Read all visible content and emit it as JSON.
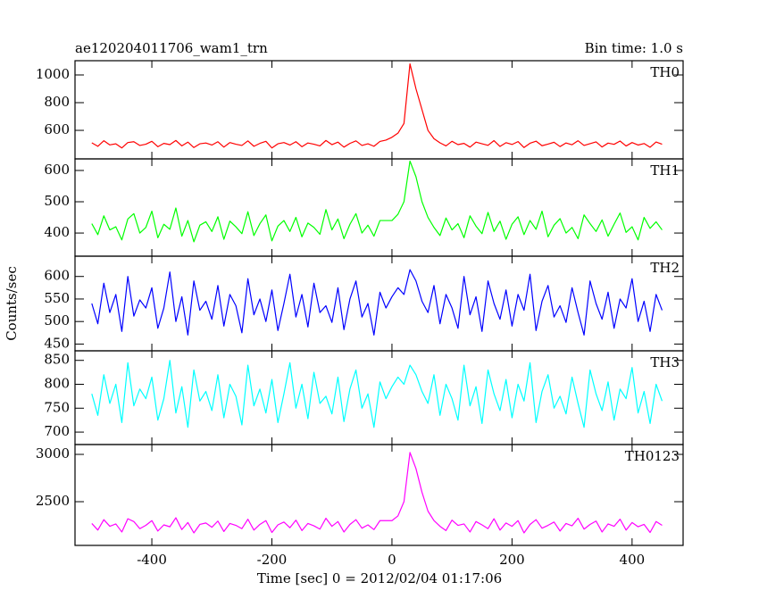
{
  "chart_data": {
    "type": "line",
    "title": "ae120204011706_wam1_trn",
    "subtitle": "Bin time: 1.0 s",
    "y_label": "Counts/sec",
    "x_label": "Time [sec] 0 = 2012/02/04 01:17:06",
    "xlim": [
      -528,
      485
    ],
    "xticks": [
      -400,
      -200,
      0,
      200,
      400
    ],
    "x": [
      -500,
      -490,
      -480,
      -470,
      -460,
      -450,
      -440,
      -430,
      -420,
      -410,
      -400,
      -390,
      -380,
      -370,
      -360,
      -350,
      -340,
      -330,
      -320,
      -310,
      -300,
      -290,
      -280,
      -270,
      -260,
      -250,
      -240,
      -230,
      -220,
      -210,
      -200,
      -190,
      -180,
      -170,
      -160,
      -150,
      -140,
      -130,
      -120,
      -110,
      -100,
      -90,
      -80,
      -70,
      -60,
      -50,
      -40,
      -30,
      -20,
      -10,
      0,
      10,
      20,
      30,
      40,
      50,
      60,
      70,
      80,
      90,
      100,
      110,
      120,
      130,
      140,
      150,
      160,
      170,
      180,
      190,
      200,
      210,
      220,
      230,
      240,
      250,
      260,
      270,
      280,
      290,
      300,
      310,
      320,
      330,
      340,
      350,
      360,
      370,
      380,
      390,
      400,
      410,
      420,
      430,
      440,
      450
    ],
    "series": [
      {
        "name": "TH0",
        "color": "#ff0000",
        "ylim": [
          394,
          1103
        ],
        "yticks": [
          600,
          800,
          1000
        ],
        "values": [
          510,
          485,
          525,
          495,
          503,
          473,
          512,
          518,
          491,
          500,
          521,
          482,
          506,
          497,
          527,
          488,
          515,
          476,
          503,
          509,
          494,
          518,
          479,
          512,
          500,
          491,
          524,
          485,
          506,
          521,
          473,
          503,
          512,
          494,
          518,
          482,
          509,
          500,
          488,
          527,
          497,
          515,
          479,
          506,
          524,
          491,
          503,
          485,
          520,
          530,
          550,
          580,
          650,
          1080,
          900,
          750,
          600,
          540,
          510,
          488,
          521,
          497,
          506,
          479,
          515,
          503,
          492,
          526,
          484,
          511,
          498,
          519,
          476,
          507,
          522,
          489,
          501,
          514,
          483,
          509,
          496,
          525,
          491,
          504,
          517,
          480,
          508,
          499,
          523,
          487,
          512,
          494,
          505,
          478,
          516,
          500
        ]
      },
      {
        "name": "TH1",
        "color": "#00ff00",
        "ylim": [
          326,
          637
        ],
        "yticks": [
          400,
          500,
          600
        ],
        "values": [
          430,
          395,
          455,
          410,
          420,
          378,
          445,
          462,
          400,
          418,
          470,
          385,
          428,
          412,
          480,
          390,
          440,
          372,
          425,
          436,
          405,
          452,
          380,
          438,
          420,
          398,
          468,
          392,
          430,
          458,
          375,
          422,
          440,
          405,
          450,
          388,
          432,
          418,
          396,
          475,
          410,
          445,
          382,
          428,
          462,
          400,
          425,
          390,
          440,
          440,
          440,
          460,
          500,
          630,
          580,
          500,
          450,
          418,
          392,
          448,
          410,
          430,
          385,
          455,
          422,
          398,
          466,
          405,
          438,
          380,
          428,
          452,
          395,
          440,
          412,
          470,
          388,
          425,
          446,
          400,
          418,
          382,
          458,
          430,
          405,
          442,
          390,
          428,
          464,
          402,
          420,
          378,
          450,
          415,
          436,
          410
        ]
      },
      {
        "name": "TH2",
        "color": "#0000ff",
        "ylim": [
          435,
          645
        ],
        "yticks": [
          450,
          500,
          550,
          600
        ],
        "values": [
          540,
          495,
          585,
          520,
          560,
          478,
          600,
          512,
          548,
          530,
          575,
          485,
          530,
          610,
          500,
          555,
          470,
          590,
          525,
          545,
          505,
          580,
          490,
          560,
          535,
          475,
          595,
          515,
          550,
          500,
          570,
          480,
          540,
          605,
          510,
          560,
          488,
          585,
          520,
          535,
          498,
          575,
          482,
          550,
          590,
          510,
          540,
          470,
          565,
          530,
          555,
          575,
          560,
          615,
          590,
          545,
          520,
          580,
          495,
          560,
          530,
          485,
          600,
          515,
          555,
          478,
          590,
          540,
          505,
          570,
          490,
          560,
          525,
          605,
          480,
          545,
          580,
          510,
          535,
          498,
          575,
          520,
          470,
          590,
          540,
          505,
          565,
          485,
          550,
          530,
          595,
          500,
          545,
          478,
          560,
          525
        ]
      },
      {
        "name": "TH3",
        "color": "#00ffff",
        "ylim": [
          674,
          870
        ],
        "yticks": [
          700,
          750,
          800,
          850
        ],
        "values": [
          780,
          735,
          820,
          760,
          800,
          720,
          845,
          755,
          790,
          770,
          815,
          725,
          770,
          850,
          740,
          795,
          710,
          830,
          765,
          785,
          745,
          820,
          730,
          800,
          775,
          715,
          840,
          755,
          790,
          740,
          810,
          720,
          780,
          845,
          750,
          800,
          728,
          825,
          760,
          775,
          738,
          815,
          722,
          790,
          830,
          750,
          780,
          710,
          805,
          770,
          795,
          815,
          800,
          840,
          820,
          785,
          760,
          820,
          735,
          800,
          770,
          725,
          840,
          755,
          795,
          718,
          830,
          780,
          745,
          810,
          730,
          800,
          765,
          845,
          720,
          785,
          820,
          750,
          775,
          738,
          815,
          760,
          710,
          830,
          780,
          745,
          805,
          725,
          790,
          770,
          835,
          740,
          785,
          718,
          800,
          765
        ]
      },
      {
        "name": "TH0123",
        "color": "#ff00ff",
        "ylim": [
          2038,
          3104
        ],
        "yticks": [
          2500,
          3000
        ],
        "values": [
          2270,
          2200,
          2310,
          2240,
          2265,
          2180,
          2320,
          2290,
          2215,
          2250,
          2300,
          2190,
          2255,
          2235,
          2330,
          2205,
          2280,
          2170,
          2260,
          2275,
          2230,
          2295,
          2185,
          2270,
          2250,
          2215,
          2315,
          2200,
          2260,
          2300,
          2175,
          2255,
          2285,
          2225,
          2305,
          2195,
          2270,
          2245,
          2210,
          2325,
          2240,
          2290,
          2180,
          2260,
          2310,
          2220,
          2255,
          2205,
          2300,
          2300,
          2300,
          2350,
          2500,
          3020,
          2850,
          2600,
          2400,
          2300,
          2240,
          2195,
          2305,
          2250,
          2265,
          2180,
          2290,
          2255,
          2215,
          2320,
          2200,
          2275,
          2240,
          2300,
          2170,
          2260,
          2310,
          2220,
          2250,
          2285,
          2190,
          2270,
          2245,
          2325,
          2210,
          2260,
          2295,
          2180,
          2265,
          2240,
          2315,
          2200,
          2280,
          2235,
          2260,
          2175,
          2290,
          2250
        ]
      }
    ]
  }
}
